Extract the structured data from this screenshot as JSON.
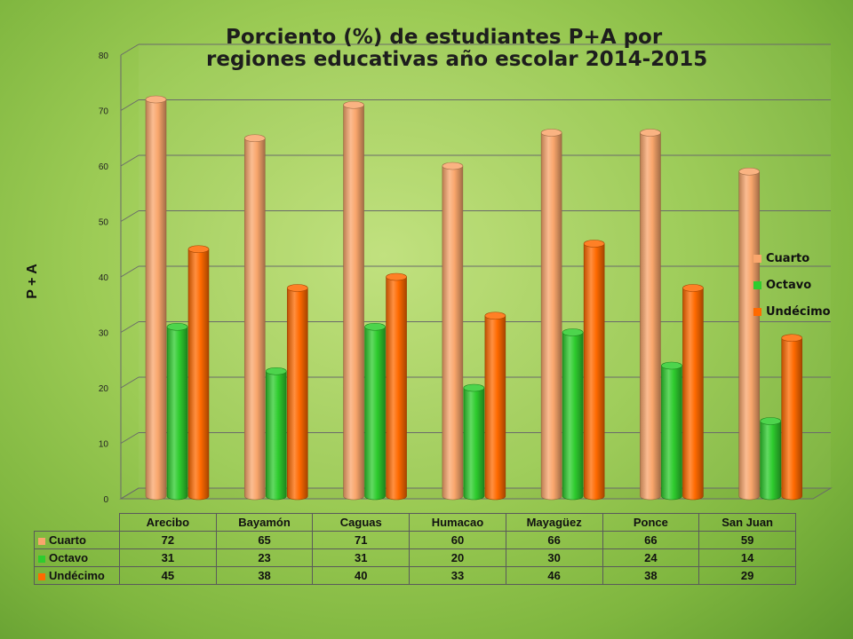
{
  "title_line1": "Porciento (%) de estudiantes  P+A  por",
  "title_line2": "regiones educativas año escolar 2014-2015",
  "chart_data": {
    "type": "bar",
    "title": "Porciento (%) de estudiantes  P+A  por regiones educativas año escolar 2014-2015",
    "ylabel": "P + A",
    "xlabel": "",
    "ylim": [
      0,
      80
    ],
    "yticks": [
      0,
      10,
      20,
      30,
      40,
      50,
      60,
      70,
      80
    ],
    "grid": true,
    "legend_position": "right",
    "categories": [
      "Arecibo",
      "Bayamón",
      "Caguas",
      "Humacao",
      "Mayagüez",
      "Ponce",
      "San Juan"
    ],
    "series": [
      {
        "name": "Cuarto",
        "color": "#f9a66c",
        "values": [
          72,
          65,
          71,
          60,
          66,
          66,
          59
        ]
      },
      {
        "name": "Octavo",
        "color": "#2ecc2e",
        "values": [
          31,
          23,
          31,
          20,
          30,
          24,
          14
        ]
      },
      {
        "name": "Undécimo",
        "color": "#ff6a00",
        "values": [
          45,
          38,
          40,
          33,
          46,
          38,
          29
        ]
      }
    ]
  }
}
